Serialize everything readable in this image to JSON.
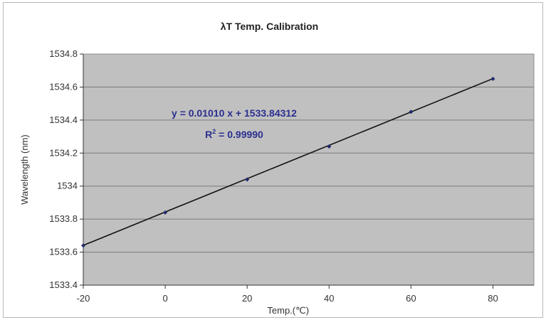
{
  "chart_data": {
    "type": "scatter",
    "title": "λT Temp. Calibration",
    "xlabel": "Temp.(℃)",
    "ylabel": "Wavelength (nm)",
    "xlim": [
      -20,
      90
    ],
    "ylim": [
      1533.4,
      1534.8
    ],
    "xticks": [
      -20,
      0,
      20,
      40,
      60,
      80
    ],
    "yticks": [
      1533.4,
      1533.6,
      1533.8,
      1534,
      1534.2,
      1534.4,
      1534.6,
      1534.8
    ],
    "grid": "horizontal",
    "series": [
      {
        "x": [
          -20,
          0,
          20,
          40,
          60,
          80
        ],
        "y": [
          1533.64,
          1533.84,
          1534.04,
          1534.24,
          1534.45,
          1534.65
        ],
        "marker_color": "#1f2a6b"
      }
    ],
    "trendline": {
      "type": "linear",
      "slope": 0.0101,
      "intercept": 1533.84312,
      "equation": "y = 0.01010 x + 1533.84312",
      "r2_label": "R",
      "r2_sup": "2",
      "r2_value": " = 0.99990",
      "color": "#111111"
    },
    "colors": {
      "plot_area": "#c0c0c0",
      "gridline": "#7a7a7a",
      "equation_text": "#2b2f8f"
    }
  }
}
